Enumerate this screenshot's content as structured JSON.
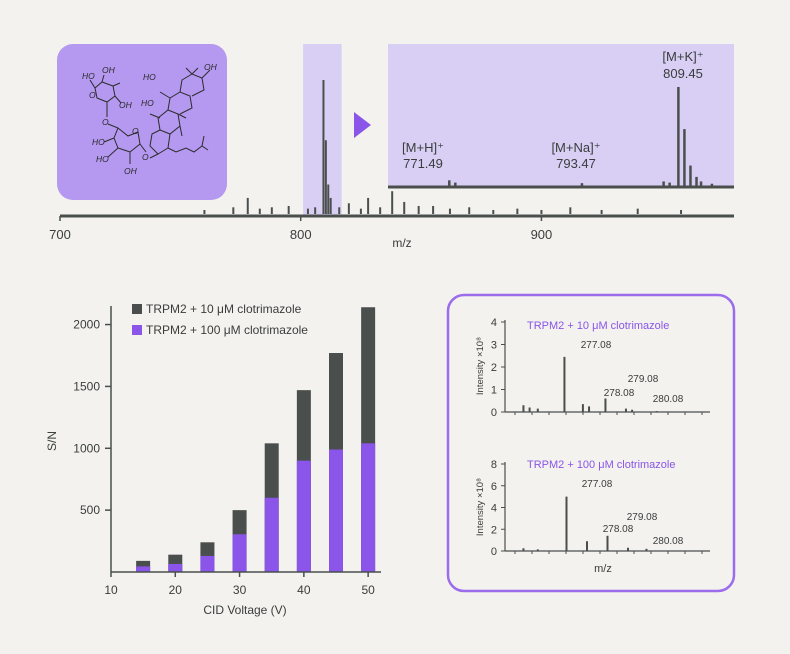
{
  "colors": {
    "background": "#f3f2ef",
    "dark": "#4a4f4d",
    "purple": "#8a55e8",
    "lavender_panel": "#b598f0",
    "lavender_highlight": "#d9cff5",
    "border_purple": "#9b6cec",
    "text": "#3a3d3c"
  },
  "structure_labels": {
    "oh_labels": [
      "HO",
      "OH",
      "HO",
      "OH",
      "HO",
      "OH",
      "HO",
      "OH",
      "HO"
    ],
    "o_labels": [
      "O",
      "O",
      "O",
      "O"
    ]
  },
  "chart_data": [
    {
      "type": "line",
      "id": "full_spectrum",
      "xlabel": "m/z",
      "xlim": [
        700,
        980
      ],
      "x_ticks": [
        "700",
        "800",
        "900"
      ],
      "peaks": [
        [
          760,
          0.03
        ],
        [
          772,
          0.05
        ],
        [
          778,
          0.12
        ],
        [
          783,
          0.04
        ],
        [
          788,
          0.05
        ],
        [
          795,
          0.06
        ],
        [
          803,
          0.04
        ],
        [
          806,
          0.05
        ],
        [
          809.45,
          1.0
        ],
        [
          810.45,
          0.55
        ],
        [
          811.45,
          0.22
        ],
        [
          812.45,
          0.12
        ],
        [
          816,
          0.05
        ],
        [
          820,
          0.08
        ],
        [
          825,
          0.04
        ],
        [
          828,
          0.12
        ],
        [
          833,
          0.05
        ],
        [
          838,
          0.17
        ],
        [
          843,
          0.09
        ],
        [
          849,
          0.06
        ],
        [
          855,
          0.06
        ],
        [
          862,
          0.04
        ],
        [
          870,
          0.05
        ],
        [
          880,
          0.03
        ],
        [
          890,
          0.04
        ],
        [
          900,
          0.03
        ],
        [
          912,
          0.05
        ],
        [
          925,
          0.03
        ],
        [
          940,
          0.04
        ],
        [
          958,
          0.03
        ]
      ],
      "highlight_range": [
        801,
        817
      ]
    },
    {
      "type": "line",
      "id": "zoom_spectrum",
      "xlim": [
        762,
        818
      ],
      "peaks": [
        [
          771.49,
          0.05
        ],
        [
          772.49,
          0.03
        ],
        [
          793.47,
          0.025
        ],
        [
          807,
          0.04
        ],
        [
          808,
          0.03
        ],
        [
          809.45,
          0.87
        ],
        [
          810.45,
          0.5
        ],
        [
          811.45,
          0.18
        ],
        [
          812.45,
          0.08
        ],
        [
          813.2,
          0.04
        ],
        [
          815,
          0.02
        ]
      ],
      "annotations": [
        {
          "label": "[M+H]⁺",
          "value": "771.49"
        },
        {
          "label": "[M+Na]⁺",
          "value": "793.47"
        },
        {
          "label": "[M+K]⁺",
          "value": "809.45"
        }
      ]
    },
    {
      "type": "bar",
      "id": "sn_bars",
      "xlabel": "CID Voltage (V)",
      "ylabel": "S/N",
      "x_values": [
        15,
        20,
        25,
        30,
        35,
        40,
        45,
        50
      ],
      "x_ticks": [
        "10",
        "20",
        "30",
        "40",
        "50"
      ],
      "xlim": [
        10,
        52
      ],
      "y_ticks": [
        "500",
        "1000",
        "1500",
        "2000"
      ],
      "ylim": [
        0,
        2150
      ],
      "legend_position": "top-left",
      "series": [
        {
          "name": "TRPM2 + 10 μM clotrimazole",
          "color": "#4a4f4d",
          "values": [
            90,
            140,
            240,
            500,
            1040,
            1470,
            1770,
            2140
          ]
        },
        {
          "name": "TRPM2 + 100 μM clotrimazole",
          "color": "#8a55e8",
          "values": [
            45,
            65,
            130,
            305,
            600,
            900,
            990,
            1040
          ]
        }
      ]
    },
    {
      "type": "line",
      "id": "inset_top",
      "title": "TRPM2 + 10 μM clotrimazole",
      "ylabel": "Intensity ×10⁸",
      "y_ticks": [
        "0",
        "1",
        "2",
        "3",
        "4"
      ],
      "ylim": [
        0,
        4
      ],
      "peaks": [
        [
          0.09,
          0.3
        ],
        [
          0.12,
          0.2
        ],
        [
          0.16,
          0.15
        ],
        [
          0.29,
          2.45
        ],
        [
          0.38,
          0.35
        ],
        [
          0.41,
          0.25
        ],
        [
          0.49,
          0.6
        ],
        [
          0.59,
          0.15
        ],
        [
          0.62,
          0.1
        ],
        [
          0.74,
          0.04
        ]
      ],
      "peak_labels": [
        "277.08",
        "278.08",
        "279.08",
        "280.08"
      ]
    },
    {
      "type": "line",
      "id": "inset_bottom",
      "title": "TRPM2 + 100 μM clotrimazole",
      "ylabel": "Intensity ×10⁸",
      "xlabel": "m/z",
      "y_ticks": [
        "0",
        "2",
        "4",
        "6",
        "8"
      ],
      "ylim": [
        0,
        8
      ],
      "peaks": [
        [
          0.09,
          0.25
        ],
        [
          0.16,
          0.15
        ],
        [
          0.3,
          5.0
        ],
        [
          0.4,
          0.9
        ],
        [
          0.5,
          1.4
        ],
        [
          0.6,
          0.3
        ],
        [
          0.69,
          0.2
        ]
      ],
      "peak_labels": [
        "277.08",
        "278.08",
        "279.08",
        "280.08"
      ]
    }
  ]
}
